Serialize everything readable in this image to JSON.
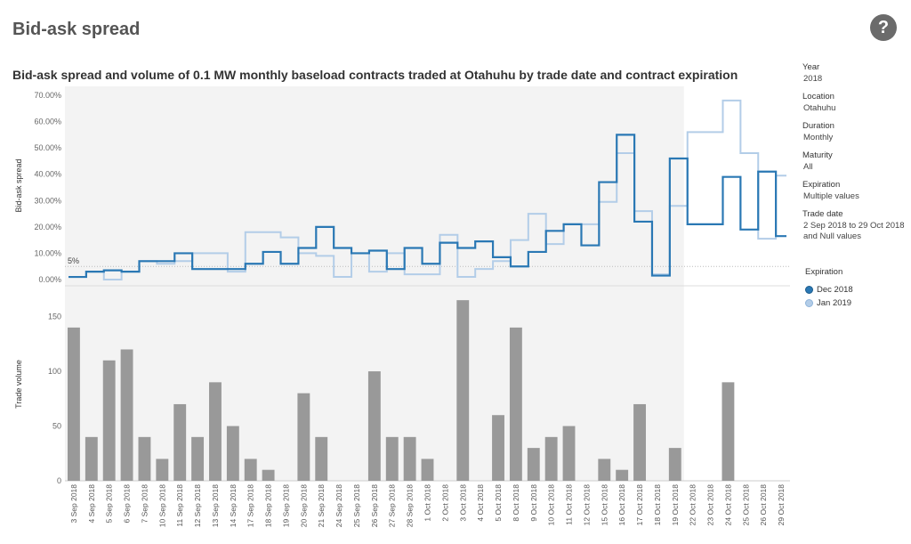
{
  "page": {
    "title": "Bid-ask spread",
    "help_glyph": "?"
  },
  "chart_title": "Bid-ask spread and volume of 0.1 MW monthly baseload contracts traded at Otahuhu by trade date and contract expiration",
  "filters": [
    {
      "label": "Year",
      "value": "2018"
    },
    {
      "label": "Location",
      "value": "Otahuhu"
    },
    {
      "label": "Duration",
      "value": "Monthly"
    },
    {
      "label": "Maturity",
      "value": "All"
    },
    {
      "label": "Expiration",
      "value": "Multiple values"
    },
    {
      "label": "Trade date",
      "value": "2 Sep 2018 to 29 Oct 2018 and Null values"
    }
  ],
  "legend": {
    "title": "Expiration",
    "items": [
      {
        "label": "Dec 2018",
        "color": "#2a78b4"
      },
      {
        "label": "Jan 2019",
        "color": "#b3cde8"
      }
    ]
  },
  "chart_data": [
    {
      "type": "line",
      "step": true,
      "ylabel": "Bid-ask spread",
      "ylim": [
        0,
        70
      ],
      "yticks": [
        "0.00%",
        "10.00%",
        "20.00%",
        "30.00%",
        "40.00%",
        "50.00%",
        "60.00%",
        "70.00%"
      ],
      "reference_line": {
        "value": 5,
        "label": "5%"
      },
      "x": [
        "3 Sep 2018",
        "4 Sep 2018",
        "5 Sep 2018",
        "6 Sep 2018",
        "7 Sep 2018",
        "10 Sep 2018",
        "11 Sep 2018",
        "12 Sep 2018",
        "13 Sep 2018",
        "14 Sep 2018",
        "17 Sep 2018",
        "18 Sep 2018",
        "19 Sep 2018",
        "20 Sep 2018",
        "21 Sep 2018",
        "24 Sep 2018",
        "25 Sep 2018",
        "26 Sep 2018",
        "27 Sep 2018",
        "28 Sep 2018",
        "1 Oct 2018",
        "2 Oct 2018",
        "3 Oct 2018",
        "4 Oct 2018",
        "5 Oct 2018",
        "8 Oct 2018",
        "9 Oct 2018",
        "10 Oct 2018",
        "11 Oct 2018",
        "12 Oct 2018",
        "15 Oct 2018",
        "16 Oct 2018",
        "17 Oct 2018",
        "18 Oct 2018",
        "19 Oct 2018",
        "22 Oct 2018",
        "23 Oct 2018",
        "24 Oct 2018",
        "25 Oct 2018",
        "26 Oct 2018",
        "29 Oct 2018"
      ],
      "series": [
        {
          "name": "Dec 2018",
          "color": "#2a78b4",
          "values": [
            1,
            3,
            3.5,
            3,
            7,
            7,
            10,
            4,
            4,
            4,
            6,
            10.5,
            6,
            12,
            20,
            12,
            10,
            11,
            4,
            12,
            6,
            14,
            12,
            14.5,
            8.5,
            5,
            10.5,
            18.5,
            21,
            13,
            37,
            55,
            22,
            1.5,
            46,
            21,
            21,
            39,
            19,
            41,
            16.5
          ]
        },
        {
          "name": "Jan 2019",
          "color": "#b3cde8",
          "values": [
            1,
            3,
            0,
            3,
            7,
            6,
            7,
            10,
            10,
            3,
            18,
            18,
            16,
            10,
            9,
            1,
            10,
            3,
            10,
            2,
            2,
            17,
            1,
            4,
            7,
            15,
            25,
            13.5,
            21,
            null,
            29.5,
            48,
            26,
            2,
            28,
            56,
            56,
            68,
            48,
            15.5,
            39.5
          ]
        }
      ]
    },
    {
      "type": "bar",
      "ylabel": "Trade volume",
      "ylim": [
        0,
        170
      ],
      "yticks": [
        0,
        50,
        100,
        150
      ],
      "values": [
        140,
        40,
        110,
        120,
        40,
        20,
        70,
        40,
        90,
        50,
        20,
        10,
        0,
        80,
        40,
        0,
        0,
        100,
        40,
        40,
        20,
        0,
        165,
        0,
        60,
        140,
        30,
        40,
        50,
        0,
        20,
        10,
        70,
        0,
        30,
        0,
        0,
        90,
        0,
        0,
        0
      ],
      "color": "#999999"
    }
  ]
}
